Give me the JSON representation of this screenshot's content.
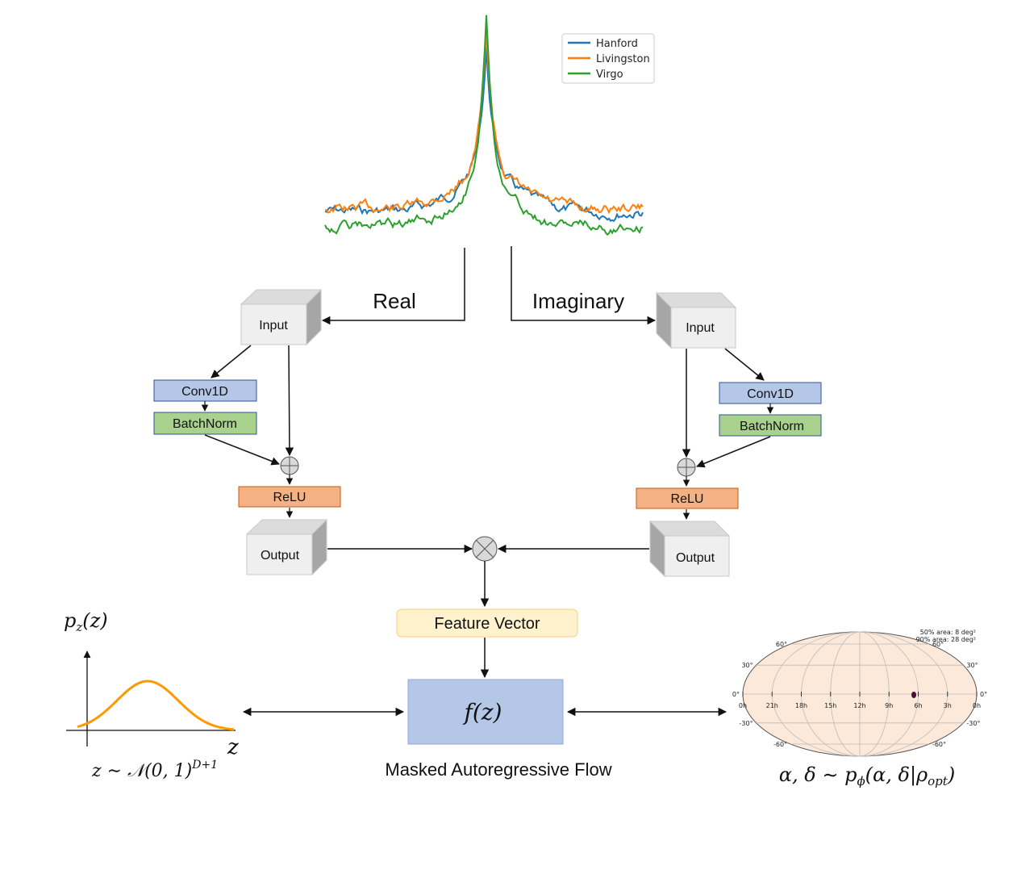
{
  "legend": {
    "series": [
      {
        "name": "Hanford",
        "color": "#1f77b4"
      },
      {
        "name": "Livingston",
        "color": "#ff7f0e"
      },
      {
        "name": "Virgo",
        "color": "#2ca02c"
      }
    ]
  },
  "branch_labels": {
    "real": "Real",
    "imaginary": "Imaginary"
  },
  "left_branch": {
    "input": "Input",
    "conv": "Conv1D",
    "batchnorm": "BatchNorm",
    "relu": "ReLU",
    "output": "Output"
  },
  "right_branch": {
    "input": "Input",
    "conv": "Conv1D",
    "batchnorm": "BatchNorm",
    "relu": "ReLU",
    "output": "Output"
  },
  "feature_vector": "Feature Vector",
  "flow_box": "f(z)",
  "flow_caption": "Masked Autoregressive Flow",
  "prior": {
    "ylabel": "p_z(z)",
    "xlabel": "z",
    "caption": "z ~ N(0,1)^(D+1)"
  },
  "skymap": {
    "area_50": "50% area: 8 deg²",
    "area_90": "90% area: 28 deg²",
    "dec_left": [
      "60°",
      "30°",
      "0°",
      "-30°",
      "-60°"
    ],
    "dec_right": [
      "60°",
      "30°",
      "0°",
      "-30°",
      "-60°"
    ],
    "ra_labels": [
      "0h",
      "21h",
      "18h",
      "15h",
      "12h",
      "9h",
      "6h",
      "3h",
      "0h"
    ],
    "caption": "α, δ ~ pφ(α, δ|ρopt)"
  },
  "colors": {
    "conv": "#b4c7e7",
    "batchnorm": "#a9d18e",
    "relu": "#f4b183",
    "feature": "#fff2cc",
    "flow": "#b4c7e7",
    "skymap_fill": "#fde9d9",
    "prior_curve": "#ff9900"
  }
}
